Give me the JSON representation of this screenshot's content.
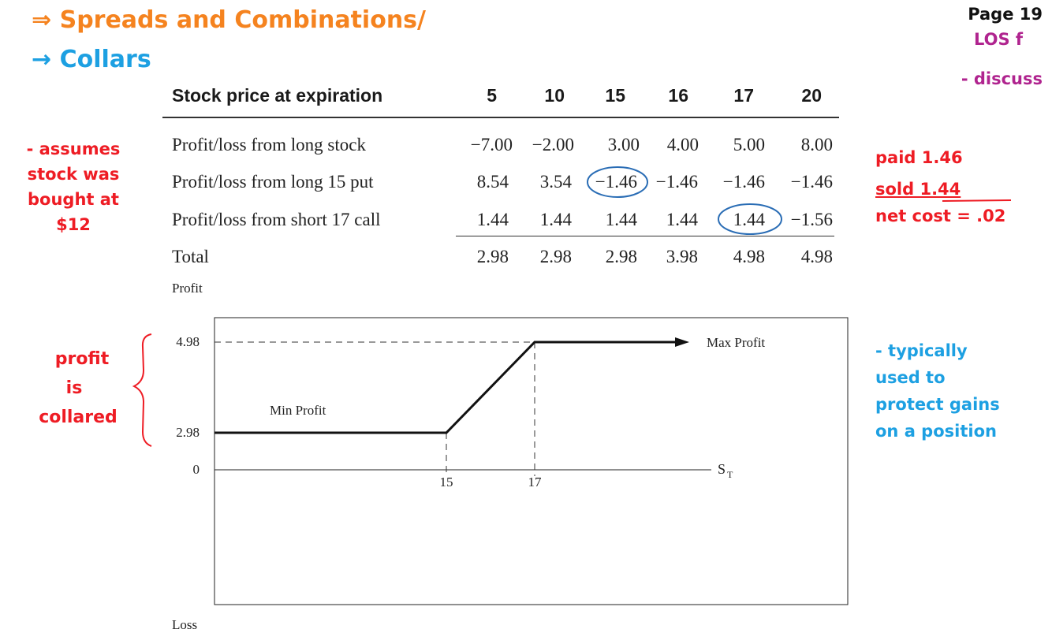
{
  "heading": {
    "line1": "⇒ Spreads and Combinations/",
    "line2": "→ Collars",
    "line1_color": "#f5831f",
    "line2_color": "#1da0e2"
  },
  "corner": {
    "page": "Page 19",
    "los": "LOS f",
    "discuss": "- discuss",
    "accent_color": "#b0248f"
  },
  "table": {
    "header_label": "Stock price at expiration",
    "columns": [
      "5",
      "10",
      "15",
      "16",
      "17",
      "20"
    ],
    "rows": [
      {
        "label": "Profit/loss from long stock",
        "values": [
          "−7.00",
          "−2.00",
          "3.00",
          "4.00",
          "5.00",
          "8.00"
        ]
      },
      {
        "label": "Profit/loss from long 15 put",
        "values": [
          "8.54",
          "3.54",
          "−1.46",
          "−1.46",
          "−1.46",
          "−1.46"
        ]
      },
      {
        "label": "Profit/loss from short 17 call",
        "values": [
          "1.44",
          "1.44",
          "1.44",
          "1.44",
          "1.44",
          "−1.56"
        ]
      },
      {
        "label": "Total",
        "values": [
          "2.98",
          "2.98",
          "2.98",
          "3.98",
          "4.98",
          "4.98"
        ]
      }
    ],
    "circle_color": "#2a6db5"
  },
  "notes": {
    "left_red": [
      "- assumes",
      "stock was",
      "bought at",
      "$12"
    ],
    "right_red": [
      "paid 1.46",
      "sold 1.44",
      "net cost = .02"
    ],
    "profit_collared": [
      "profit",
      "is",
      "collared"
    ],
    "right_blue": [
      "- typically",
      "used to",
      "protect gains",
      "on a position"
    ],
    "red_color": "#ee1c24",
    "blue_color": "#1da0e2"
  },
  "chart_data": {
    "type": "line",
    "top_label": "Profit",
    "bottom_label": "Loss",
    "x_axis_label": "S",
    "x_axis_subscript": "T",
    "x_ticks": [
      "15",
      "17"
    ],
    "y_ticks": [
      "4.98",
      "2.98",
      "0"
    ],
    "annotations": [
      "Max Profit",
      "Min Profit"
    ],
    "series": [
      {
        "x": [
          0,
          15,
          17,
          25
        ],
        "y": [
          2.98,
          2.98,
          4.98,
          4.98
        ]
      }
    ]
  }
}
